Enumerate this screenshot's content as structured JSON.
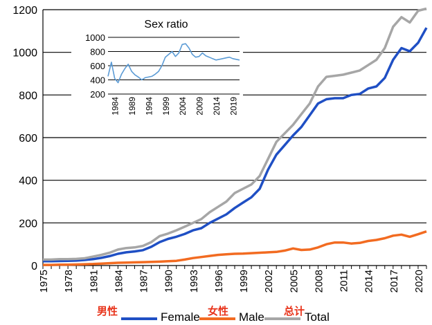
{
  "chart_data": [
    {
      "type": "line",
      "y_ticks": [
        "0",
        "200",
        "400",
        "600",
        "800",
        "1000",
        "1200"
      ],
      "ylim": [
        0,
        1200
      ],
      "x_tick_labels": [
        "1975",
        "1978",
        "1981",
        "1984",
        "1987",
        "1990",
        "1993",
        "1996",
        "1999",
        "2002",
        "2005",
        "2008",
        "2011",
        "2014",
        "2017",
        "2020"
      ],
      "x": [
        1975,
        1976,
        1977,
        1978,
        1979,
        1980,
        1981,
        1982,
        1983,
        1984,
        1985,
        1986,
        1987,
        1988,
        1989,
        1990,
        1991,
        1992,
        1993,
        1994,
        1995,
        1996,
        1997,
        1998,
        1999,
        2000,
        2001,
        2002,
        2003,
        2004,
        2005,
        2006,
        2007,
        2008,
        2009,
        2010,
        2011,
        2012,
        2013,
        2014,
        2015,
        2016,
        2017,
        2018,
        2019,
        2020,
        2021
      ],
      "grid": true,
      "legend_position": "bottom",
      "series": [
        {
          "name": "Female",
          "label_cn": "男性",
          "color": "#1f4fc4",
          "values": [
            20,
            20,
            21,
            22,
            23,
            26,
            30,
            36,
            44,
            55,
            62,
            66,
            72,
            88,
            110,
            125,
            135,
            148,
            165,
            175,
            200,
            220,
            240,
            270,
            295,
            320,
            360,
            450,
            520,
            565,
            610,
            650,
            705,
            760,
            780,
            785,
            785,
            800,
            805,
            830,
            840,
            880,
            965,
            1020,
            1005,
            1045,
            1115
          ]
        },
        {
          "name": "Male",
          "label_cn": "女性",
          "color": "#f26b21",
          "values": [
            3,
            3,
            4,
            4,
            5,
            6,
            7,
            9,
            11,
            13,
            14,
            15,
            16,
            17,
            18,
            20,
            22,
            28,
            35,
            40,
            45,
            50,
            53,
            55,
            56,
            58,
            60,
            62,
            64,
            70,
            80,
            73,
            75,
            85,
            100,
            108,
            108,
            103,
            106,
            115,
            120,
            128,
            140,
            145,
            135,
            147,
            160
          ]
        },
        {
          "name": "Total",
          "label_cn": "总计",
          "color": "#a6a6a6",
          "values": [
            28,
            28,
            30,
            30,
            31,
            34,
            42,
            50,
            60,
            75,
            82,
            85,
            92,
            110,
            138,
            150,
            165,
            182,
            200,
            218,
            250,
            275,
            300,
            340,
            360,
            380,
            420,
            500,
            580,
            620,
            660,
            710,
            760,
            840,
            885,
            890,
            895,
            905,
            915,
            940,
            965,
            1020,
            1120,
            1165,
            1140,
            1195,
            1230
          ]
        }
      ]
    },
    {
      "type": "line",
      "title": "Sex ratio",
      "y_ticks": [
        "200",
        "400",
        "600",
        "800",
        "1000"
      ],
      "ylim": [
        200,
        1000
      ],
      "x_tick_labels": [
        "1984",
        "1989",
        "1994",
        "1999",
        "2004",
        "2009",
        "2014",
        "2019"
      ],
      "x": [
        1982,
        1983,
        1984,
        1985,
        1986,
        1987,
        1988,
        1989,
        1990,
        1991,
        1992,
        1993,
        1994,
        1995,
        1996,
        1997,
        1998,
        1999,
        2000,
        2001,
        2002,
        2003,
        2004,
        2005,
        2006,
        2007,
        2008,
        2009,
        2010,
        2011,
        2012,
        2013,
        2014,
        2015,
        2016,
        2017,
        2018,
        2019,
        2020,
        2021
      ],
      "grid": true,
      "series": [
        {
          "color": "#5b9bd5",
          "values": [
            450,
            650,
            420,
            360,
            480,
            560,
            620,
            520,
            470,
            440,
            400,
            430,
            440,
            450,
            480,
            520,
            600,
            720,
            760,
            800,
            730,
            780,
            900,
            910,
            850,
            760,
            720,
            730,
            780,
            740,
            720,
            700,
            680,
            690,
            700,
            710,
            720,
            700,
            690,
            680
          ]
        }
      ]
    }
  ]
}
